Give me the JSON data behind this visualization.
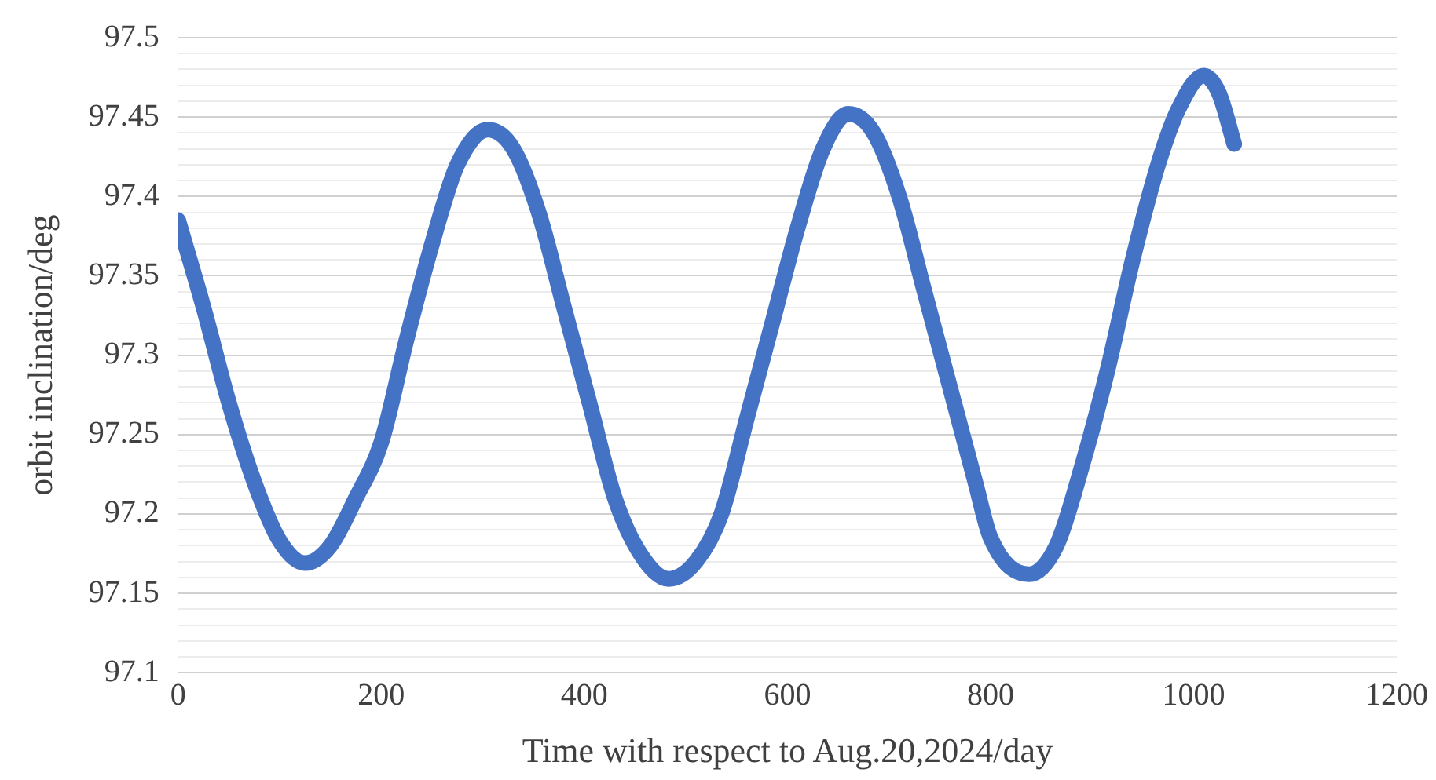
{
  "chart_data": {
    "type": "line",
    "xlabel": "Time with respect to Aug.20,2024/day",
    "ylabel": "orbit inclination/deg",
    "xlim": [
      0,
      1200
    ],
    "xticks": [
      0,
      200,
      400,
      600,
      800,
      1000,
      1200
    ],
    "ylim": [
      97.1,
      97.5
    ],
    "yticks": [
      97.1,
      {
        "value": 97.11,
        "label": null
      },
      {
        "value": 97.12,
        "label": null
      },
      {
        "value": 97.13,
        "label": null
      },
      {
        "value": 97.14,
        "label": null
      },
      97.15,
      {
        "value": 97.16,
        "label": null
      },
      {
        "value": 97.17,
        "label": null
      },
      {
        "value": 97.18,
        "label": null
      },
      {
        "value": 97.19,
        "label": null
      },
      97.2,
      {
        "value": 97.21,
        "label": null
      },
      {
        "value": 97.22,
        "label": null
      },
      {
        "value": 97.23,
        "label": null
      },
      {
        "value": 97.24,
        "label": null
      },
      97.25,
      {
        "value": 97.26,
        "label": null
      },
      {
        "value": 97.27,
        "label": null
      },
      {
        "value": 97.28,
        "label": null
      },
      {
        "value": 97.29,
        "label": null
      },
      97.3,
      {
        "value": 97.31,
        "label": null
      },
      {
        "value": 97.32,
        "label": null
      },
      {
        "value": 97.33,
        "label": null
      },
      {
        "value": 97.34,
        "label": null
      },
      97.35,
      {
        "value": 97.36,
        "label": null
      },
      {
        "value": 97.37,
        "label": null
      },
      {
        "value": 97.38,
        "label": null
      },
      {
        "value": 97.39,
        "label": null
      },
      97.4,
      {
        "value": 97.41,
        "label": null
      },
      {
        "value": 97.42,
        "label": null
      },
      {
        "value": 97.43,
        "label": null
      },
      {
        "value": 97.44,
        "label": null
      },
      97.45,
      {
        "value": 97.46,
        "label": null
      },
      {
        "value": 97.47,
        "label": null
      },
      {
        "value": 97.48,
        "label": null
      },
      {
        "value": 97.49,
        "label": null
      },
      97.5
    ],
    "grid": "y",
    "legend": false,
    "marker": "none",
    "line_style": "solid",
    "series": [
      {
        "color": "#4472c4",
        "x": [
          0,
          25,
          50,
          75,
          100,
          125,
          150,
          175,
          200,
          225,
          250,
          275,
          305,
          330,
          355,
          380,
          405,
          430,
          455,
          483,
          510,
          535,
          560,
          585,
          610,
          635,
          660,
          685,
          710,
          735,
          760,
          785,
          800,
          838,
          865,
          890,
          915,
          940,
          965,
          985,
          1010,
          1025,
          1040
        ],
        "values": [
          97.385,
          97.33,
          97.27,
          97.22,
          97.183,
          97.169,
          97.18,
          97.21,
          97.245,
          97.31,
          97.37,
          97.42,
          97.442,
          97.43,
          97.39,
          97.33,
          97.27,
          97.21,
          97.175,
          97.159,
          97.17,
          97.2,
          97.26,
          97.32,
          97.38,
          97.43,
          97.452,
          97.44,
          97.4,
          97.34,
          97.28,
          97.22,
          97.185,
          97.162,
          97.18,
          97.23,
          97.29,
          97.36,
          97.42,
          97.455,
          97.476,
          97.465,
          97.433
        ]
      }
    ]
  }
}
